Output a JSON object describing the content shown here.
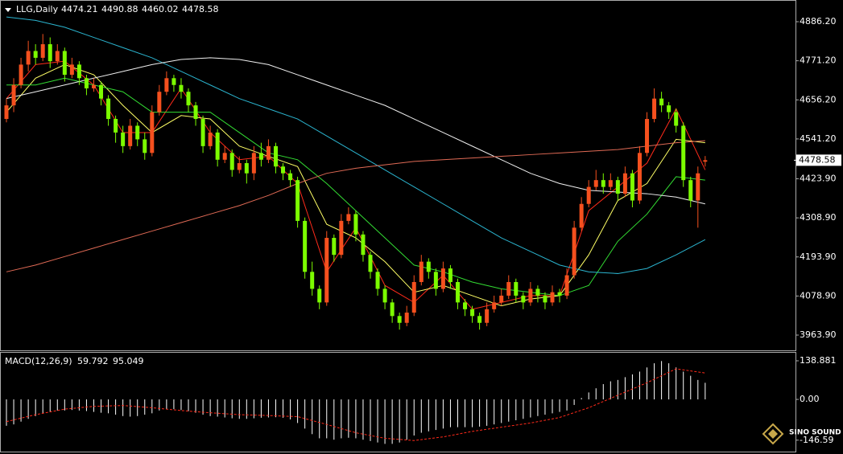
{
  "chart_data": [
    {
      "type": "candlestick",
      "title": "LLG,Daily",
      "up_color": "#f5501e",
      "down_color": "#7cfc00",
      "ylim": [
        3919,
        4943
      ],
      "yticks": [
        {
          "value": 4886.2,
          "label": "4886.20"
        },
        {
          "value": 4771.2,
          "label": "4771.20"
        },
        {
          "value": 4656.2,
          "label": "4656.20"
        },
        {
          "value": 4541.2,
          "label": "4541.20"
        },
        {
          "value": 4423.9,
          "label": "4423.90"
        },
        {
          "value": 4308.9,
          "label": "4308.90"
        },
        {
          "value": 4193.9,
          "label": "4193.90"
        },
        {
          "value": 4078.9,
          "label": "4078.90"
        },
        {
          "value": 3963.9,
          "label": "3963.90"
        }
      ],
      "candles": [
        [
          4600,
          4660,
          4590,
          4640
        ],
        [
          4640,
          4720,
          4620,
          4700
        ],
        [
          4700,
          4780,
          4690,
          4760
        ],
        [
          4760,
          4830,
          4740,
          4800
        ],
        [
          4800,
          4820,
          4760,
          4780
        ],
        [
          4780,
          4850,
          4770,
          4820
        ],
        [
          4820,
          4840,
          4750,
          4770
        ],
        [
          4770,
          4820,
          4760,
          4800
        ],
        [
          4800,
          4810,
          4710,
          4730
        ],
        [
          4730,
          4780,
          4720,
          4760
        ],
        [
          4760,
          4770,
          4700,
          4720
        ],
        [
          4720,
          4730,
          4670,
          4690
        ],
        [
          4690,
          4720,
          4680,
          4700
        ],
        [
          4700,
          4710,
          4640,
          4660
        ],
        [
          4660,
          4670,
          4580,
          4600
        ],
        [
          4600,
          4610,
          4530,
          4560
        ],
        [
          4560,
          4580,
          4500,
          4520
        ],
        [
          4520,
          4600,
          4510,
          4580
        ],
        [
          4580,
          4590,
          4520,
          4540
        ],
        [
          4540,
          4560,
          4480,
          4500
        ],
        [
          4500,
          4640,
          4490,
          4620
        ],
        [
          4620,
          4700,
          4610,
          4680
        ],
        [
          4680,
          4740,
          4670,
          4720
        ],
        [
          4720,
          4730,
          4680,
          4700
        ],
        [
          4700,
          4720,
          4660,
          4680
        ],
        [
          4680,
          4690,
          4620,
          4640
        ],
        [
          4640,
          4650,
          4580,
          4600
        ],
        [
          4600,
          4610,
          4500,
          4520
        ],
        [
          4520,
          4580,
          4510,
          4560
        ],
        [
          4560,
          4570,
          4460,
          4480
        ],
        [
          4480,
          4520,
          4470,
          4500
        ],
        [
          4500,
          4510,
          4430,
          4450
        ],
        [
          4450,
          4490,
          4440,
          4470
        ],
        [
          4470,
          4480,
          4410,
          4440
        ],
        [
          4440,
          4520,
          4420,
          4500
        ],
        [
          4500,
          4530,
          4460,
          4480
        ],
        [
          4480,
          4540,
          4470,
          4520
        ],
        [
          4520,
          4530,
          4440,
          4460
        ],
        [
          4460,
          4470,
          4420,
          4440
        ],
        [
          4440,
          4450,
          4400,
          4420
        ],
        [
          4420,
          4430,
          4280,
          4300
        ],
        [
          4300,
          4310,
          4130,
          4150
        ],
        [
          4150,
          4180,
          4080,
          4100
        ],
        [
          4100,
          4110,
          4040,
          4060
        ],
        [
          4060,
          4270,
          4050,
          4250
        ],
        [
          4250,
          4260,
          4180,
          4200
        ],
        [
          4200,
          4320,
          4190,
          4300
        ],
        [
          4300,
          4340,
          4290,
          4320
        ],
        [
          4320,
          4330,
          4240,
          4260
        ],
        [
          4260,
          4270,
          4180,
          4200
        ],
        [
          4200,
          4210,
          4130,
          4150
        ],
        [
          4150,
          4160,
          4080,
          4100
        ],
        [
          4100,
          4110,
          4040,
          4060
        ],
        [
          4060,
          4070,
          4000,
          4020
        ],
        [
          4020,
          4030,
          3980,
          4000
        ],
        [
          4000,
          4050,
          3990,
          4030
        ],
        [
          4030,
          4140,
          4020,
          4120
        ],
        [
          4120,
          4200,
          4110,
          4180
        ],
        [
          4180,
          4190,
          4130,
          4150
        ],
        [
          4150,
          4160,
          4080,
          4100
        ],
        [
          4100,
          4180,
          4090,
          4160
        ],
        [
          4160,
          4170,
          4100,
          4120
        ],
        [
          4120,
          4130,
          4040,
          4060
        ],
        [
          4060,
          4070,
          4020,
          4040
        ],
        [
          4040,
          4050,
          4000,
          4020
        ],
        [
          4020,
          4030,
          3980,
          4000
        ],
        [
          4000,
          4060,
          3990,
          4040
        ],
        [
          4040,
          4080,
          4030,
          4060
        ],
        [
          4060,
          4100,
          4050,
          4080
        ],
        [
          4080,
          4140,
          4070,
          4120
        ],
        [
          4120,
          4130,
          4060,
          4080
        ],
        [
          4080,
          4090,
          4040,
          4060
        ],
        [
          4060,
          4120,
          4050,
          4100
        ],
        [
          4100,
          4110,
          4060,
          4080
        ],
        [
          4080,
          4090,
          4040,
          4060
        ],
        [
          4060,
          4110,
          4050,
          4090
        ],
        [
          4090,
          4100,
          4060,
          4080
        ],
        [
          4080,
          4160,
          4070,
          4140
        ],
        [
          4140,
          4300,
          4130,
          4280
        ],
        [
          4280,
          4370,
          4270,
          4350
        ],
        [
          4350,
          4420,
          4340,
          4400
        ],
        [
          4400,
          4450,
          4390,
          4420
        ],
        [
          4420,
          4440,
          4380,
          4400
        ],
        [
          4400,
          4440,
          4390,
          4420
        ],
        [
          4420,
          4430,
          4360,
          4380
        ],
        [
          4380,
          4460,
          4370,
          4440
        ],
        [
          4440,
          4450,
          4340,
          4360
        ],
        [
          4360,
          4520,
          4350,
          4500
        ],
        [
          4500,
          4620,
          4490,
          4600
        ],
        [
          4600,
          4690,
          4590,
          4660
        ],
        [
          4660,
          4680,
          4620,
          4640
        ],
        [
          4640,
          4650,
          4600,
          4620
        ],
        [
          4620,
          4630,
          4560,
          4580
        ],
        [
          4580,
          4590,
          4400,
          4420
        ],
        [
          4420,
          4430,
          4340,
          4360
        ],
        [
          4360,
          4460,
          4280,
          4440
        ],
        [
          4474.21,
          4490.88,
          4460.02,
          4478.58
        ]
      ],
      "lines": [
        {
          "color": "#ff2a1a",
          "x": [
            0,
            4,
            8,
            12,
            16,
            20,
            24,
            28,
            32,
            36,
            40,
            44,
            48,
            52,
            56,
            60,
            64,
            68,
            72,
            76,
            80,
            84,
            88,
            92,
            96
          ],
          "values": [
            4660,
            4760,
            4770,
            4700,
            4560,
            4560,
            4690,
            4560,
            4480,
            4490,
            4410,
            4150,
            4280,
            4110,
            4060,
            4140,
            4040,
            4060,
            4080,
            4080,
            4330,
            4400,
            4470,
            4630,
            4450
          ]
        },
        {
          "color": "#ffff66",
          "x": [
            0,
            4,
            8,
            12,
            16,
            20,
            24,
            28,
            32,
            36,
            40,
            44,
            48,
            52,
            56,
            60,
            64,
            68,
            72,
            76,
            80,
            84,
            88,
            92,
            96
          ],
          "values": [
            4620,
            4720,
            4760,
            4730,
            4640,
            4560,
            4610,
            4600,
            4520,
            4490,
            4460,
            4290,
            4250,
            4180,
            4090,
            4110,
            4080,
            4050,
            4070,
            4080,
            4200,
            4360,
            4410,
            4540,
            4530
          ]
        },
        {
          "color": "#33dd33",
          "x": [
            0,
            4,
            8,
            12,
            16,
            20,
            24,
            28,
            32,
            36,
            40,
            44,
            48,
            52,
            56,
            60,
            64,
            68,
            72,
            76,
            80,
            84,
            88,
            92,
            96
          ],
          "values": [
            4700,
            4700,
            4720,
            4700,
            4680,
            4620,
            4620,
            4620,
            4560,
            4500,
            4480,
            4410,
            4330,
            4250,
            4170,
            4150,
            4120,
            4100,
            4090,
            4080,
            4110,
            4240,
            4320,
            4430,
            4420
          ]
        },
        {
          "color": "#2bb5d0",
          "x": [
            0,
            4,
            8,
            12,
            16,
            20,
            24,
            28,
            32,
            36,
            40,
            44,
            48,
            52,
            56,
            60,
            64,
            68,
            72,
            76,
            80,
            84,
            88,
            92,
            96
          ],
          "values": [
            4900,
            4890,
            4870,
            4840,
            4810,
            4780,
            4740,
            4700,
            4660,
            4630,
            4600,
            4550,
            4500,
            4450,
            4400,
            4350,
            4300,
            4250,
            4210,
            4170,
            4150,
            4145,
            4160,
            4200,
            4245
          ]
        },
        {
          "color": "#f0f0f0",
          "x": [
            0,
            4,
            8,
            12,
            16,
            20,
            24,
            28,
            32,
            36,
            40,
            44,
            48,
            52,
            56,
            60,
            64,
            68,
            72,
            76,
            80,
            84,
            88,
            92,
            96
          ],
          "values": [
            4660,
            4680,
            4700,
            4720,
            4740,
            4760,
            4775,
            4780,
            4775,
            4760,
            4730,
            4700,
            4670,
            4640,
            4600,
            4560,
            4520,
            4480,
            4440,
            4410,
            4390,
            4385,
            4380,
            4370,
            4350
          ]
        },
        {
          "color": "#e06a55",
          "x": [
            0,
            4,
            8,
            12,
            16,
            20,
            24,
            28,
            32,
            36,
            40,
            44,
            48,
            52,
            56,
            60,
            64,
            68,
            72,
            76,
            80,
            84,
            88,
            92,
            96
          ],
          "values": [
            4150,
            4170,
            4195,
            4220,
            4245,
            4270,
            4295,
            4320,
            4345,
            4375,
            4410,
            4440,
            4455,
            4465,
            4475,
            4480,
            4485,
            4490,
            4495,
            4500,
            4505,
            4510,
            4520,
            4530,
            4536
          ]
        }
      ]
    },
    {
      "type": "macd",
      "title": "MACD(12,26,9)",
      "bar_color": "#ffffff",
      "ylim": [
        -182,
        170.7
      ],
      "yticks": [
        138.881,
        {
          "value": 0,
          "label": "0.00"
        },
        -146.59
      ],
      "values": [
        -95,
        -90,
        -80,
        -70,
        -60,
        -50,
        -45,
        -40,
        -40,
        -38,
        -40,
        -42,
        -45,
        -48,
        -50,
        -55,
        -60,
        -62,
        -60,
        -55,
        -50,
        -40,
        -35,
        -35,
        -38,
        -42,
        -48,
        -55,
        -60,
        -62,
        -65,
        -68,
        -70,
        -70,
        -68,
        -66,
        -65,
        -64,
        -66,
        -72,
        -85,
        -105,
        -125,
        -140,
        -140,
        -145,
        -140,
        -138,
        -140,
        -145,
        -150,
        -155,
        -160,
        -160,
        -155,
        -145,
        -130,
        -120,
        -115,
        -110,
        -105,
        -100,
        -100,
        -100,
        -100,
        -98,
        -95,
        -90,
        -85,
        -80,
        -75,
        -70,
        -65,
        -60,
        -55,
        -50,
        -45,
        -40,
        -20,
        5,
        25,
        40,
        55,
        65,
        70,
        80,
        90,
        100,
        115,
        130,
        138,
        130,
        115,
        100,
        85,
        70,
        59.792
      ],
      "signal": {
        "color": "#ff2a1a",
        "x": [
          0,
          4,
          8,
          12,
          16,
          20,
          24,
          28,
          32,
          36,
          40,
          44,
          48,
          52,
          56,
          60,
          64,
          68,
          72,
          76,
          80,
          84,
          88,
          92,
          96
        ],
        "values": [
          -80,
          -55,
          -35,
          -25,
          -22,
          -30,
          -40,
          -48,
          -55,
          -58,
          -62,
          -90,
          -120,
          -140,
          -148,
          -135,
          -115,
          -100,
          -85,
          -65,
          -30,
          15,
          60,
          110,
          95.049
        ]
      },
      "watermark": "SINO SOUND"
    }
  ]
}
